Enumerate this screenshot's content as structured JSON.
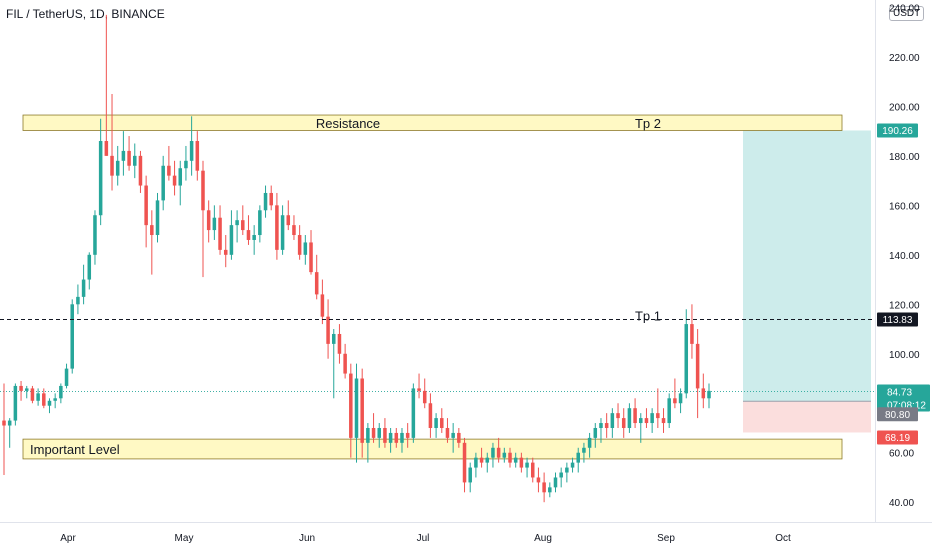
{
  "header": {
    "symbol_title": "FIL / TetherUS, 1D, BINANCE",
    "currency_badge": "USDT"
  },
  "colors": {
    "up": "#26a69a",
    "down": "#ef5350",
    "zone_fill": "#fff9c4",
    "zone_stroke": "#8d7a2a",
    "target_fill": "#cdeceb",
    "stop_fill": "#fbdedd",
    "axis_text": "#131722"
  },
  "chart_data": {
    "type": "candlestick",
    "y_axis": {
      "min": 32,
      "max": 243,
      "ticks": [
        40,
        60,
        80,
        100,
        120,
        140,
        160,
        180,
        200,
        220,
        240
      ],
      "tick_labels": [
        "40.00",
        "60.00",
        "80.00",
        "100.00",
        "120.00",
        "140.00",
        "160.00",
        "180.00",
        "200.00",
        "220.00",
        "240.00"
      ]
    },
    "x_axis": {
      "labels": [
        "Apr",
        "May",
        "Jun",
        "Jul",
        "Aug",
        "Sep",
        "Oct"
      ]
    },
    "zones": [
      {
        "id": "resistance",
        "label": "Resistance",
        "secondary_label": "Tp 2",
        "low": 190.26,
        "high": 196.5
      },
      {
        "id": "important",
        "label": "Important Level",
        "low": 57.5,
        "high": 65.5
      }
    ],
    "tp1": {
      "label": "Tp 1",
      "value": 113.83
    },
    "position": {
      "entry": 80.8,
      "target": 190.26,
      "stop": 68.19
    },
    "price_labels": {
      "target": "190.26",
      "tp1": "113.83",
      "current": "84.73",
      "countdown": "07:08:12",
      "entry": "80.80",
      "stop": "68.19"
    },
    "current_price": 84.73,
    "candles": [
      [
        73,
        88,
        51,
        71
      ],
      [
        71,
        74,
        62,
        73
      ],
      [
        73,
        88,
        71,
        87
      ],
      [
        87,
        89,
        81,
        85
      ],
      [
        85,
        87,
        82,
        86
      ],
      [
        86,
        87,
        80,
        81
      ],
      [
        81,
        86,
        79,
        84
      ],
      [
        84,
        86,
        78,
        79
      ],
      [
        79,
        82,
        76,
        81
      ],
      [
        81,
        84,
        78,
        82
      ],
      [
        82,
        88,
        80,
        87
      ],
      [
        87,
        96,
        86,
        94
      ],
      [
        94,
        122,
        92,
        120
      ],
      [
        120,
        128,
        116,
        123
      ],
      [
        123,
        136,
        120,
        130
      ],
      [
        130,
        141,
        126,
        140
      ],
      [
        140,
        158,
        136,
        156
      ],
      [
        156,
        195,
        152,
        186
      ],
      [
        186,
        237,
        180,
        180
      ],
      [
        180,
        205,
        166,
        172
      ],
      [
        172,
        184,
        168,
        178
      ],
      [
        178,
        190,
        172,
        182
      ],
      [
        182,
        188,
        174,
        176
      ],
      [
        176,
        185,
        171,
        180
      ],
      [
        180,
        182,
        165,
        168
      ],
      [
        168,
        172,
        143,
        152
      ],
      [
        152,
        158,
        132,
        148
      ],
      [
        148,
        165,
        145,
        162
      ],
      [
        162,
        180,
        158,
        176
      ],
      [
        176,
        184,
        170,
        172
      ],
      [
        172,
        178,
        164,
        168
      ],
      [
        168,
        178,
        160,
        175
      ],
      [
        175,
        184,
        170,
        178
      ],
      [
        178,
        196,
        172,
        186
      ],
      [
        186,
        190,
        170,
        174
      ],
      [
        174,
        178,
        131,
        158
      ],
      [
        158,
        162,
        145,
        150
      ],
      [
        150,
        160,
        146,
        155
      ],
      [
        155,
        160,
        140,
        142
      ],
      [
        142,
        148,
        135,
        140
      ],
      [
        140,
        158,
        138,
        152
      ],
      [
        152,
        158,
        145,
        154
      ],
      [
        154,
        160,
        148,
        150
      ],
      [
        150,
        156,
        144,
        146
      ],
      [
        146,
        152,
        140,
        148
      ],
      [
        148,
        160,
        145,
        158
      ],
      [
        158,
        168,
        155,
        165
      ],
      [
        165,
        168,
        158,
        160
      ],
      [
        160,
        165,
        138,
        142
      ],
      [
        142,
        160,
        140,
        156
      ],
      [
        156,
        162,
        150,
        152
      ],
      [
        152,
        156,
        146,
        148
      ],
      [
        148,
        152,
        138,
        140
      ],
      [
        140,
        148,
        136,
        145
      ],
      [
        145,
        150,
        132,
        133
      ],
      [
        133,
        140,
        122,
        124
      ],
      [
        124,
        130,
        112,
        115
      ],
      [
        115,
        122,
        98,
        104
      ],
      [
        104,
        110,
        82,
        108
      ],
      [
        108,
        112,
        96,
        100
      ],
      [
        100,
        104,
        90,
        92
      ],
      [
        92,
        96,
        58,
        66
      ],
      [
        66,
        96,
        56,
        90
      ],
      [
        90,
        94,
        58,
        64
      ],
      [
        64,
        72,
        56,
        70
      ],
      [
        70,
        76,
        64,
        66
      ],
      [
        66,
        72,
        62,
        70
      ],
      [
        70,
        74,
        62,
        64
      ],
      [
        64,
        70,
        60,
        68
      ],
      [
        68,
        70,
        62,
        64
      ],
      [
        64,
        70,
        60,
        68
      ],
      [
        68,
        72,
        62,
        66
      ],
      [
        66,
        88,
        64,
        86
      ],
      [
        86,
        92,
        82,
        85
      ],
      [
        85,
        90,
        78,
        80
      ],
      [
        80,
        84,
        66,
        70
      ],
      [
        70,
        76,
        66,
        74
      ],
      [
        74,
        78,
        68,
        70
      ],
      [
        70,
        74,
        64,
        66
      ],
      [
        66,
        72,
        60,
        68
      ],
      [
        68,
        70,
        62,
        64
      ],
      [
        64,
        66,
        44,
        48
      ],
      [
        48,
        56,
        44,
        54
      ],
      [
        54,
        60,
        50,
        58
      ],
      [
        58,
        62,
        54,
        56
      ],
      [
        56,
        60,
        52,
        58
      ],
      [
        58,
        64,
        54,
        62
      ],
      [
        62,
        66,
        56,
        58
      ],
      [
        58,
        62,
        56,
        60
      ],
      [
        60,
        62,
        54,
        56
      ],
      [
        56,
        60,
        54,
        58
      ],
      [
        58,
        60,
        52,
        54
      ],
      [
        54,
        58,
        50,
        56
      ],
      [
        56,
        58,
        48,
        50
      ],
      [
        50,
        54,
        44,
        48
      ],
      [
        48,
        52,
        40,
        44
      ],
      [
        44,
        48,
        42,
        46
      ],
      [
        46,
        52,
        44,
        50
      ],
      [
        50,
        54,
        46,
        52
      ],
      [
        52,
        56,
        48,
        54
      ],
      [
        54,
        58,
        52,
        56
      ],
      [
        56,
        62,
        52,
        60
      ],
      [
        60,
        64,
        56,
        62
      ],
      [
        62,
        68,
        58,
        66
      ],
      [
        66,
        72,
        62,
        70
      ],
      [
        70,
        74,
        64,
        72
      ],
      [
        72,
        76,
        66,
        70
      ],
      [
        70,
        78,
        66,
        76
      ],
      [
        76,
        80,
        70,
        74
      ],
      [
        74,
        78,
        66,
        70
      ],
      [
        70,
        80,
        68,
        78
      ],
      [
        78,
        82,
        70,
        72
      ],
      [
        72,
        76,
        64,
        74
      ],
      [
        74,
        78,
        70,
        72
      ],
      [
        72,
        78,
        68,
        76
      ],
      [
        76,
        86,
        70,
        74
      ],
      [
        74,
        78,
        68,
        72
      ],
      [
        72,
        84,
        70,
        82
      ],
      [
        82,
        90,
        78,
        80
      ],
      [
        80,
        86,
        76,
        84
      ],
      [
        84,
        118,
        82,
        112
      ],
      [
        112,
        120,
        98,
        104
      ],
      [
        104,
        110,
        74,
        86
      ],
      [
        86,
        92,
        78,
        82
      ],
      [
        82,
        88,
        78,
        85
      ]
    ]
  }
}
